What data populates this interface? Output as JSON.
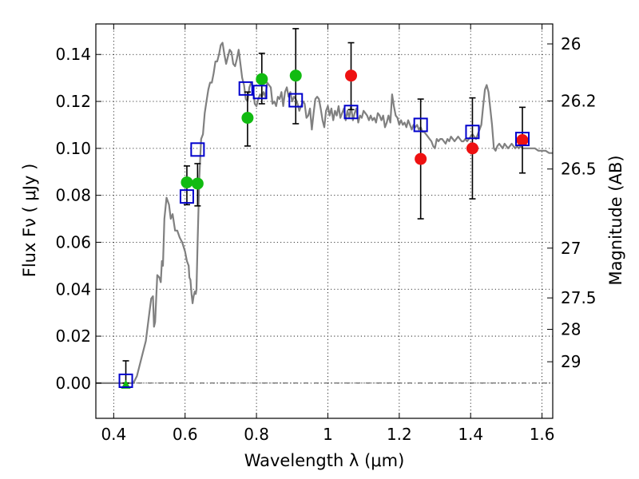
{
  "chart_data": {
    "type": "scatter",
    "xlabel": "Wavelength  λ (μm)",
    "ylabel": "Flux  Fν  ( μJy )",
    "ylabel_right": "Magnitude (AB)",
    "xlim": [
      0.35,
      1.63
    ],
    "ylim": [
      -0.015,
      0.153
    ],
    "grid": true,
    "legend": "none",
    "x_ticks": [
      0.4,
      0.6,
      0.8,
      1,
      1.2,
      1.4,
      1.6
    ],
    "x_tick_labels": [
      "0.4",
      "0.6",
      "0.8",
      "1",
      "1.2",
      "1.4",
      "1.6"
    ],
    "y_ticks": [
      0,
      0.02,
      0.04,
      0.06,
      0.08,
      0.1,
      0.12,
      0.14
    ],
    "y_tick_labels": [
      "0.00",
      "0.02",
      "0.04",
      "0.06",
      "0.08",
      "0.10",
      "0.12",
      "0.14"
    ],
    "mag_ticks": [
      {
        "label": "26",
        "flux": 0.1445
      },
      {
        "label": "26.2",
        "flux": 0.1202
      },
      {
        "label": "26.5",
        "flux": 0.0912
      },
      {
        "label": "27",
        "flux": 0.0575
      },
      {
        "label": "27.5",
        "flux": 0.0363
      },
      {
        "label": "28",
        "flux": 0.0229
      },
      {
        "label": "29",
        "flux": 0.0091
      }
    ],
    "series": [
      {
        "kind": "line",
        "color": "#808080",
        "points": [
          [
            0.35,
            0.0
          ],
          [
            0.44,
            0.0
          ],
          [
            0.455,
            0.0
          ],
          [
            0.465,
            0.003
          ],
          [
            0.48,
            0.012
          ],
          [
            0.49,
            0.018
          ],
          [
            0.5,
            0.03
          ],
          [
            0.505,
            0.036
          ],
          [
            0.51,
            0.037
          ],
          [
            0.513,
            0.024
          ],
          [
            0.516,
            0.026
          ],
          [
            0.522,
            0.046
          ],
          [
            0.528,
            0.045
          ],
          [
            0.532,
            0.043
          ],
          [
            0.535,
            0.052
          ],
          [
            0.538,
            0.05
          ],
          [
            0.542,
            0.07
          ],
          [
            0.548,
            0.079
          ],
          [
            0.555,
            0.076
          ],
          [
            0.56,
            0.07
          ],
          [
            0.565,
            0.072
          ],
          [
            0.572,
            0.065
          ],
          [
            0.578,
            0.065
          ],
          [
            0.585,
            0.062
          ],
          [
            0.592,
            0.06
          ],
          [
            0.6,
            0.056
          ],
          [
            0.605,
            0.052
          ],
          [
            0.61,
            0.05
          ],
          [
            0.612,
            0.045
          ],
          [
            0.615,
            0.044
          ],
          [
            0.618,
            0.038
          ],
          [
            0.621,
            0.034
          ],
          [
            0.624,
            0.037
          ],
          [
            0.627,
            0.039
          ],
          [
            0.63,
            0.038
          ],
          [
            0.632,
            0.04
          ],
          [
            0.635,
            0.06
          ],
          [
            0.64,
            0.088
          ],
          [
            0.645,
            0.104
          ],
          [
            0.65,
            0.106
          ],
          [
            0.655,
            0.115
          ],
          [
            0.66,
            0.12
          ],
          [
            0.665,
            0.125
          ],
          [
            0.67,
            0.128
          ],
          [
            0.675,
            0.128
          ],
          [
            0.68,
            0.132
          ],
          [
            0.685,
            0.137
          ],
          [
            0.69,
            0.137
          ],
          [
            0.695,
            0.14
          ],
          [
            0.7,
            0.144
          ],
          [
            0.705,
            0.145
          ],
          [
            0.71,
            0.14
          ],
          [
            0.715,
            0.136
          ],
          [
            0.72,
            0.139
          ],
          [
            0.725,
            0.142
          ],
          [
            0.73,
            0.141
          ],
          [
            0.735,
            0.136
          ],
          [
            0.74,
            0.135
          ],
          [
            0.745,
            0.138
          ],
          [
            0.75,
            0.142
          ],
          [
            0.755,
            0.136
          ],
          [
            0.76,
            0.13
          ],
          [
            0.765,
            0.127
          ],
          [
            0.77,
            0.121
          ],
          [
            0.775,
            0.12
          ],
          [
            0.78,
            0.126
          ],
          [
            0.785,
            0.128
          ],
          [
            0.79,
            0.126
          ],
          [
            0.795,
            0.119
          ],
          [
            0.8,
            0.118
          ],
          [
            0.805,
            0.121
          ],
          [
            0.81,
            0.123
          ],
          [
            0.815,
            0.122
          ],
          [
            0.82,
            0.124
          ],
          [
            0.825,
            0.122
          ],
          [
            0.83,
            0.128
          ],
          [
            0.835,
            0.127
          ],
          [
            0.84,
            0.126
          ],
          [
            0.845,
            0.119
          ],
          [
            0.85,
            0.12
          ],
          [
            0.855,
            0.118
          ],
          [
            0.86,
            0.122
          ],
          [
            0.865,
            0.121
          ],
          [
            0.87,
            0.124
          ],
          [
            0.875,
            0.118
          ],
          [
            0.88,
            0.124
          ],
          [
            0.885,
            0.126
          ],
          [
            0.89,
            0.122
          ],
          [
            0.895,
            0.124
          ],
          [
            0.9,
            0.12
          ],
          [
            0.905,
            0.122
          ],
          [
            0.91,
            0.121
          ],
          [
            0.915,
            0.119
          ],
          [
            0.92,
            0.116
          ],
          [
            0.925,
            0.118
          ],
          [
            0.93,
            0.12
          ],
          [
            0.935,
            0.119
          ],
          [
            0.94,
            0.113
          ],
          [
            0.945,
            0.114
          ],
          [
            0.95,
            0.117
          ],
          [
            0.955,
            0.108
          ],
          [
            0.96,
            0.115
          ],
          [
            0.965,
            0.121
          ],
          [
            0.97,
            0.122
          ],
          [
            0.975,
            0.121
          ],
          [
            0.98,
            0.117
          ],
          [
            0.985,
            0.112
          ],
          [
            0.99,
            0.109
          ],
          [
            0.995,
            0.116
          ],
          [
            1.0,
            0.118
          ],
          [
            1.005,
            0.114
          ],
          [
            1.01,
            0.117
          ],
          [
            1.015,
            0.112
          ],
          [
            1.02,
            0.116
          ],
          [
            1.025,
            0.114
          ],
          [
            1.03,
            0.118
          ],
          [
            1.035,
            0.113
          ],
          [
            1.04,
            0.115
          ],
          [
            1.045,
            0.117
          ],
          [
            1.05,
            0.112
          ],
          [
            1.055,
            0.116
          ],
          [
            1.06,
            0.113
          ],
          [
            1.065,
            0.118
          ],
          [
            1.07,
            0.112
          ],
          [
            1.075,
            0.115
          ],
          [
            1.08,
            0.117
          ],
          [
            1.085,
            0.111
          ],
          [
            1.09,
            0.114
          ],
          [
            1.095,
            0.113
          ],
          [
            1.1,
            0.116
          ],
          [
            1.105,
            0.115
          ],
          [
            1.11,
            0.114
          ],
          [
            1.115,
            0.112
          ],
          [
            1.12,
            0.114
          ],
          [
            1.125,
            0.112
          ],
          [
            1.13,
            0.113
          ],
          [
            1.135,
            0.111
          ],
          [
            1.14,
            0.115
          ],
          [
            1.145,
            0.114
          ],
          [
            1.15,
            0.112
          ],
          [
            1.155,
            0.114
          ],
          [
            1.16,
            0.109
          ],
          [
            1.165,
            0.111
          ],
          [
            1.17,
            0.114
          ],
          [
            1.175,
            0.111
          ],
          [
            1.18,
            0.123
          ],
          [
            1.185,
            0.118
          ],
          [
            1.19,
            0.114
          ],
          [
            1.195,
            0.113
          ],
          [
            1.2,
            0.11
          ],
          [
            1.205,
            0.112
          ],
          [
            1.21,
            0.11
          ],
          [
            1.215,
            0.111
          ],
          [
            1.22,
            0.109
          ],
          [
            1.225,
            0.112
          ],
          [
            1.23,
            0.11
          ],
          [
            1.235,
            0.108
          ],
          [
            1.24,
            0.11
          ],
          [
            1.245,
            0.109
          ],
          [
            1.25,
            0.11
          ],
          [
            1.255,
            0.108
          ],
          [
            1.26,
            0.109
          ],
          [
            1.265,
            0.107
          ],
          [
            1.27,
            0.107
          ],
          [
            1.275,
            0.106
          ],
          [
            1.28,
            0.105
          ],
          [
            1.285,
            0.104
          ],
          [
            1.29,
            0.103
          ],
          [
            1.295,
            0.101
          ],
          [
            1.3,
            0.1
          ],
          [
            1.305,
            0.104
          ],
          [
            1.31,
            0.103
          ],
          [
            1.315,
            0.104
          ],
          [
            1.32,
            0.104
          ],
          [
            1.325,
            0.103
          ],
          [
            1.33,
            0.102
          ],
          [
            1.335,
            0.104
          ],
          [
            1.34,
            0.103
          ],
          [
            1.345,
            0.105
          ],
          [
            1.35,
            0.104
          ],
          [
            1.355,
            0.103
          ],
          [
            1.36,
            0.104
          ],
          [
            1.365,
            0.105
          ],
          [
            1.37,
            0.104
          ],
          [
            1.375,
            0.103
          ],
          [
            1.38,
            0.103
          ],
          [
            1.385,
            0.104
          ],
          [
            1.39,
            0.103
          ],
          [
            1.395,
            0.104
          ],
          [
            1.4,
            0.105
          ],
          [
            1.405,
            0.106
          ],
          [
            1.41,
            0.105
          ],
          [
            1.415,
            0.104
          ],
          [
            1.42,
            0.106
          ],
          [
            1.425,
            0.108
          ],
          [
            1.43,
            0.11
          ],
          [
            1.435,
            0.118
          ],
          [
            1.44,
            0.125
          ],
          [
            1.445,
            0.127
          ],
          [
            1.45,
            0.124
          ],
          [
            1.455,
            0.117
          ],
          [
            1.46,
            0.11
          ],
          [
            1.465,
            0.1
          ],
          [
            1.47,
            0.099
          ],
          [
            1.475,
            0.101
          ],
          [
            1.48,
            0.102
          ],
          [
            1.485,
            0.101
          ],
          [
            1.49,
            0.1
          ],
          [
            1.495,
            0.102
          ],
          [
            1.5,
            0.101
          ],
          [
            1.505,
            0.1
          ],
          [
            1.51,
            0.101
          ],
          [
            1.515,
            0.102
          ],
          [
            1.52,
            0.101
          ],
          [
            1.525,
            0.1
          ],
          [
            1.53,
            0.101
          ],
          [
            1.535,
            0.1
          ],
          [
            1.54,
            0.101
          ],
          [
            1.545,
            0.1
          ],
          [
            1.55,
            0.1
          ],
          [
            1.56,
            0.1
          ],
          [
            1.57,
            0.1
          ],
          [
            1.58,
            0.1
          ],
          [
            1.59,
            0.099
          ],
          [
            1.6,
            0.099
          ],
          [
            1.61,
            0.099
          ],
          [
            1.62,
            0.098
          ],
          [
            1.63,
            0.098
          ]
        ]
      },
      {
        "kind": "error_bars",
        "color": "#000000",
        "points": [
          {
            "x": 0.434,
            "low": 0.0,
            "high": 0.0095
          },
          {
            "x": 0.605,
            "low": 0.076,
            "high": 0.0925
          },
          {
            "x": 0.635,
            "low": 0.0755,
            "high": 0.0935
          },
          {
            "x": 0.775,
            "low": 0.101,
            "high": 0.124
          },
          {
            "x": 0.815,
            "low": 0.119,
            "high": 0.1405
          },
          {
            "x": 0.91,
            "low": 0.1105,
            "high": 0.151
          },
          {
            "x": 1.065,
            "low": 0.1165,
            "high": 0.145
          },
          {
            "x": 1.26,
            "low": 0.07,
            "high": 0.121
          },
          {
            "x": 1.405,
            "low": 0.0785,
            "high": 0.1215
          },
          {
            "x": 1.545,
            "low": 0.0895,
            "high": 0.1175
          }
        ]
      },
      {
        "kind": "markers",
        "marker": "circle",
        "color": "#11bb11",
        "points": [
          [
            0.605,
            0.0855
          ],
          [
            0.635,
            0.085
          ],
          [
            0.775,
            0.113
          ],
          [
            0.815,
            0.1295
          ],
          [
            0.91,
            0.131
          ]
        ]
      },
      {
        "kind": "markers",
        "marker": "triangle",
        "color": "#11bb11",
        "points": [
          [
            0.434,
            -0.001
          ]
        ]
      },
      {
        "kind": "markers",
        "marker": "circle",
        "color": "#ee1111",
        "points": [
          [
            1.065,
            0.131
          ],
          [
            1.26,
            0.0955
          ],
          [
            1.405,
            0.1
          ],
          [
            1.545,
            0.1035
          ]
        ]
      },
      {
        "kind": "markers",
        "marker": "open-square",
        "color": "#0000cc",
        "points": [
          [
            0.434,
            0.001
          ],
          [
            0.605,
            0.0795
          ],
          [
            0.635,
            0.0995
          ],
          [
            0.77,
            0.1255
          ],
          [
            0.81,
            0.124
          ],
          [
            0.91,
            0.1205
          ],
          [
            1.065,
            0.1155
          ],
          [
            1.26,
            0.11
          ],
          [
            1.405,
            0.107
          ],
          [
            1.545,
            0.104
          ]
        ]
      }
    ]
  }
}
